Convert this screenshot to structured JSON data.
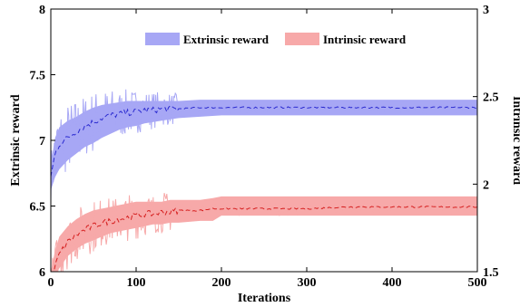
{
  "chart_data": {
    "type": "line",
    "title": "",
    "xlabel": "Iterations",
    "ylabel_left": "Extrinsic reward",
    "ylabel_right": "Intrinsic reward",
    "xlim": [
      0,
      500
    ],
    "ylim_left": [
      6,
      8
    ],
    "ylim_right": [
      1.5,
      3
    ],
    "x_ticks": [
      "0",
      "100",
      "200",
      "300",
      "400",
      "500"
    ],
    "y_left_ticks": [
      "6",
      "6.5",
      "7",
      "7.5",
      "8"
    ],
    "y_right_ticks": [
      "1.5",
      "2",
      "2.5",
      "3"
    ],
    "grid": false,
    "legend_position": "top-center",
    "colors": {
      "extrinsic_band": "#a7a7f5",
      "extrinsic_line": "#2a2ad0",
      "intrinsic_band": "#f7a9a9",
      "intrinsic_line": "#d62020"
    },
    "series": [
      {
        "name": "Extrinsic reward",
        "axis": "left",
        "x": [
          0,
          5,
          10,
          20,
          30,
          40,
          50,
          60,
          70,
          80,
          90,
          100,
          110,
          120,
          130,
          140,
          150,
          175,
          200,
          250,
          300,
          350,
          400,
          450,
          500
        ],
        "mean": [
          6.72,
          6.9,
          6.97,
          7.02,
          7.07,
          7.11,
          7.14,
          7.17,
          7.19,
          7.2,
          7.21,
          7.22,
          7.23,
          7.23,
          7.24,
          7.24,
          7.24,
          7.25,
          7.25,
          7.25,
          7.25,
          7.25,
          7.25,
          7.25,
          7.25
        ],
        "lower": [
          6.62,
          6.72,
          6.78,
          6.85,
          6.9,
          6.95,
          6.98,
          7.02,
          7.05,
          7.08,
          7.1,
          7.11,
          7.13,
          7.14,
          7.15,
          7.16,
          7.17,
          7.18,
          7.19,
          7.19,
          7.19,
          7.19,
          7.19,
          7.19,
          7.19
        ],
        "upper": [
          6.82,
          7.02,
          7.1,
          7.15,
          7.18,
          7.22,
          7.25,
          7.27,
          7.28,
          7.29,
          7.3,
          7.3,
          7.3,
          7.3,
          7.3,
          7.3,
          7.3,
          7.31,
          7.31,
          7.31,
          7.31,
          7.31,
          7.31,
          7.31,
          7.31
        ]
      },
      {
        "name": "Intrinsic reward",
        "axis": "right",
        "x": [
          0,
          5,
          10,
          20,
          30,
          40,
          50,
          60,
          70,
          80,
          90,
          100,
          110,
          120,
          130,
          140,
          150,
          175,
          190,
          200,
          250,
          300,
          350,
          400,
          450,
          500
        ],
        "mean": [
          1.45,
          1.53,
          1.6,
          1.67,
          1.71,
          1.74,
          1.76,
          1.78,
          1.79,
          1.8,
          1.81,
          1.82,
          1.83,
          1.83,
          1.84,
          1.84,
          1.85,
          1.85,
          1.86,
          1.86,
          1.86,
          1.86,
          1.87,
          1.87,
          1.87,
          1.87
        ],
        "lower": [
          1.4,
          1.47,
          1.52,
          1.59,
          1.63,
          1.66,
          1.68,
          1.7,
          1.72,
          1.73,
          1.74,
          1.75,
          1.76,
          1.77,
          1.77,
          1.78,
          1.78,
          1.79,
          1.79,
          1.82,
          1.82,
          1.82,
          1.82,
          1.82,
          1.82,
          1.82
        ],
        "upper": [
          1.5,
          1.62,
          1.7,
          1.76,
          1.8,
          1.83,
          1.85,
          1.86,
          1.87,
          1.88,
          1.89,
          1.9,
          1.9,
          1.9,
          1.9,
          1.91,
          1.91,
          1.91,
          1.92,
          1.93,
          1.93,
          1.93,
          1.93,
          1.93,
          1.93,
          1.93
        ]
      }
    ]
  }
}
